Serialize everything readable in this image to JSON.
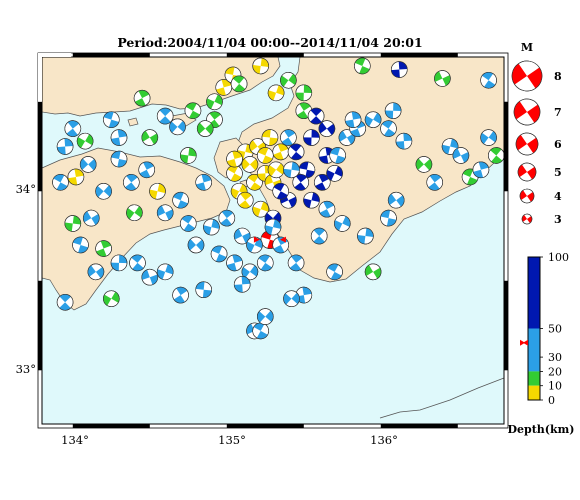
{
  "map": {
    "title": "Period:2004/11/04 00:00--2014/11/04 20:01",
    "lon_labels": [
      "134°",
      "135°",
      "136°"
    ],
    "lat_labels": [
      "34°",
      "33°"
    ],
    "lon_range": [
      133.8,
      136.8
    ],
    "lat_range": [
      32.7,
      34.75
    ],
    "colors": {
      "sea": "#dff9fb",
      "land": "#f8e6c8",
      "coast": "#555555",
      "yellow": "#f5d800",
      "green": "#33cc33",
      "cyan": "#2b9fe6",
      "blue": "#0018b0",
      "red": "#ff0000"
    }
  },
  "magnitude_legend": {
    "title": "M",
    "items": [
      "8",
      "7",
      "6",
      "5",
      "4",
      "3"
    ]
  },
  "depth_scale": {
    "title": "Depth(km)",
    "labels": [
      "100",
      "50",
      "30",
      "20",
      "10",
      "0"
    ],
    "colors": [
      "#0018b0",
      "#2b9fe6",
      "#33cc33",
      "#f5d800"
    ]
  },
  "events": [
    [
      135.28,
      33.73,
      "red",
      4,
      0.3
    ],
    [
      134.45,
      34.52,
      "green",
      3,
      1.1
    ],
    [
      134.78,
      34.45,
      "green",
      3,
      0.5
    ],
    [
      134.92,
      34.5,
      "green",
      3,
      2.0
    ],
    [
      134.92,
      34.4,
      "green",
      3,
      0.9
    ],
    [
      134.86,
      34.35,
      "green",
      3,
      2.4
    ],
    [
      134.98,
      34.58,
      "yellow",
      3,
      1.3
    ],
    [
      135.04,
      34.65,
      "yellow",
      3,
      0.2
    ],
    [
      135.22,
      34.7,
      "yellow",
      3,
      1.7
    ],
    [
      135.08,
      34.6,
      "green",
      3,
      0.7
    ],
    [
      135.4,
      34.62,
      "green",
      3,
      2.2
    ],
    [
      135.5,
      34.45,
      "green",
      3,
      1.0
    ],
    [
      135.32,
      34.55,
      "yellow",
      3,
      1.9
    ],
    [
      135.88,
      34.7,
      "green",
      3,
      0.4
    ],
    [
      136.12,
      34.68,
      "blue",
      3,
      1.5
    ],
    [
      136.4,
      34.63,
      "green",
      3,
      2.7
    ],
    [
      136.7,
      34.62,
      "cyan",
      3,
      0.6
    ],
    [
      135.5,
      34.55,
      "green",
      3,
      1.6
    ],
    [
      134.0,
      34.35,
      "cyan",
      3,
      0.9
    ],
    [
      134.08,
      34.28,
      "green",
      3,
      2.1
    ],
    [
      134.25,
      34.4,
      "cyan",
      3,
      0.3
    ],
    [
      134.3,
      34.3,
      "cyan",
      3,
      1.4
    ],
    [
      134.5,
      34.3,
      "green",
      3,
      2.6
    ],
    [
      134.6,
      34.42,
      "cyan",
      3,
      0.8
    ],
    [
      134.75,
      34.2,
      "green",
      3,
      1.7
    ],
    [
      134.68,
      34.36,
      "cyan",
      3,
      2.3
    ],
    [
      134.48,
      34.12,
      "cyan",
      3,
      1.1
    ],
    [
      135.05,
      34.1,
      "yellow",
      3,
      0.5
    ],
    [
      135.12,
      34.22,
      "yellow",
      3,
      1.8
    ],
    [
      135.2,
      34.25,
      "yellow",
      3,
      2.5
    ],
    [
      135.28,
      34.3,
      "yellow",
      3,
      0.1
    ],
    [
      135.35,
      34.22,
      "yellow",
      3,
      1.2
    ],
    [
      135.08,
      34.0,
      "yellow",
      3,
      2.0
    ],
    [
      135.18,
      34.05,
      "yellow",
      3,
      0.6
    ],
    [
      135.25,
      34.1,
      "yellow",
      3,
      1.5
    ],
    [
      135.3,
      34.05,
      "yellow",
      3,
      2.8
    ],
    [
      135.12,
      33.95,
      "yellow",
      3,
      0.9
    ],
    [
      135.22,
      33.9,
      "yellow",
      3,
      1.9
    ],
    [
      135.15,
      34.15,
      "yellow",
      3,
      2.4
    ],
    [
      135.25,
      34.2,
      "yellow",
      3,
      0.4
    ],
    [
      135.05,
      34.18,
      "yellow",
      3,
      1.3
    ],
    [
      135.32,
      34.12,
      "yellow",
      3,
      2.2
    ],
    [
      135.4,
      34.3,
      "cyan",
      3,
      1.0
    ],
    [
      135.45,
      34.22,
      "blue",
      3,
      0.7
    ],
    [
      135.55,
      34.3,
      "blue",
      3,
      1.6
    ],
    [
      135.65,
      34.35,
      "blue",
      3,
      2.5
    ],
    [
      135.52,
      34.12,
      "blue",
      3,
      0.2
    ],
    [
      135.62,
      34.05,
      "blue",
      3,
      1.1
    ],
    [
      135.7,
      34.1,
      "blue",
      3,
      2.0
    ],
    [
      135.48,
      34.05,
      "blue",
      3,
      0.9
    ],
    [
      135.55,
      33.95,
      "blue",
      3,
      1.8
    ],
    [
      135.4,
      33.95,
      "blue",
      3,
      2.7
    ],
    [
      135.35,
      34.0,
      "blue",
      3,
      0.5
    ],
    [
      135.65,
      34.2,
      "blue",
      3,
      1.4
    ],
    [
      135.3,
      33.85,
      "blue",
      3,
      2.3
    ],
    [
      135.58,
      34.42,
      "blue",
      3,
      0.8
    ],
    [
      135.42,
      34.12,
      "cyan",
      3,
      1.7
    ],
    [
      135.78,
      34.3,
      "cyan",
      3,
      2.6
    ],
    [
      135.72,
      34.2,
      "cyan",
      3,
      0.3
    ],
    [
      135.85,
      34.35,
      "cyan",
      3,
      1.2
    ],
    [
      135.95,
      34.4,
      "cyan",
      3,
      2.1
    ],
    [
      136.05,
      34.35,
      "cyan",
      3,
      0.6
    ],
    [
      136.15,
      34.28,
      "cyan",
      3,
      1.5
    ],
    [
      136.28,
      34.15,
      "green",
      3,
      2.4
    ],
    [
      136.35,
      34.05,
      "cyan",
      3,
      0.9
    ],
    [
      136.45,
      34.25,
      "cyan",
      3,
      1.8
    ],
    [
      136.52,
      34.2,
      "cyan",
      3,
      2.7
    ],
    [
      136.58,
      34.08,
      "green",
      3,
      0.4
    ],
    [
      136.65,
      34.12,
      "cyan",
      3,
      1.3
    ],
    [
      136.7,
      34.3,
      "cyan",
      3,
      2.2
    ],
    [
      136.75,
      34.2,
      "green",
      3,
      0.7
    ],
    [
      136.08,
      34.45,
      "cyan",
      3,
      1.6
    ],
    [
      136.1,
      33.95,
      "cyan",
      3,
      2.5
    ],
    [
      136.05,
      33.85,
      "cyan",
      3,
      0.2
    ],
    [
      135.65,
      33.9,
      "cyan",
      3,
      1.1
    ],
    [
      135.75,
      33.82,
      "cyan",
      3,
      2.0
    ],
    [
      135.6,
      33.75,
      "cyan",
      3,
      0.8
    ],
    [
      135.9,
      33.75,
      "cyan",
      3,
      1.7
    ],
    [
      135.95,
      33.55,
      "green",
      3,
      2.6
    ],
    [
      135.7,
      33.55,
      "cyan",
      3,
      0.5
    ],
    [
      135.5,
      33.42,
      "cyan",
      3,
      1.4
    ],
    [
      135.42,
      33.4,
      "cyan",
      3,
      2.3
    ],
    [
      135.0,
      33.85,
      "cyan",
      3,
      0.9
    ],
    [
      134.9,
      33.8,
      "cyan",
      3,
      1.8
    ],
    [
      135.1,
      33.75,
      "cyan",
      3,
      2.7
    ],
    [
      134.95,
      33.65,
      "cyan",
      3,
      0.4
    ],
    [
      135.05,
      33.6,
      "cyan",
      3,
      1.3
    ],
    [
      135.15,
      33.55,
      "cyan",
      3,
      2.2
    ],
    [
      135.25,
      33.6,
      "cyan",
      3,
      0.6
    ],
    [
      135.1,
      33.48,
      "cyan",
      3,
      1.5
    ],
    [
      134.8,
      33.7,
      "cyan",
      3,
      2.4
    ],
    [
      134.85,
      33.45,
      "cyan",
      3,
      0.1
    ],
    [
      134.7,
      33.42,
      "cyan",
      3,
      1.0
    ],
    [
      134.6,
      33.55,
      "cyan",
      3,
      1.9
    ],
    [
      134.5,
      33.52,
      "cyan",
      3,
      2.8
    ],
    [
      134.42,
      33.6,
      "cyan",
      3,
      0.7
    ],
    [
      134.3,
      33.6,
      "cyan",
      3,
      1.6
    ],
    [
      134.15,
      33.55,
      "cyan",
      3,
      2.5
    ],
    [
      134.05,
      33.7,
      "cyan",
      3,
      0.3
    ],
    [
      134.2,
      33.68,
      "green",
      3,
      1.2
    ],
    [
      134.25,
      33.4,
      "green",
      3,
      2.1
    ],
    [
      133.95,
      33.38,
      "cyan",
      3,
      0.8
    ],
    [
      134.0,
      33.82,
      "green",
      3,
      1.7
    ],
    [
      134.12,
      33.85,
      "cyan",
      3,
      2.6
    ],
    [
      133.92,
      34.05,
      "cyan",
      3,
      0.5
    ],
    [
      134.02,
      34.08,
      "yellow",
      3,
      1.4
    ],
    [
      134.2,
      34.0,
      "cyan",
      3,
      2.3
    ],
    [
      134.38,
      34.05,
      "cyan",
      3,
      0.9
    ],
    [
      134.55,
      34.0,
      "yellow",
      3,
      1.8
    ],
    [
      134.6,
      33.88,
      "cyan",
      3,
      2.7
    ],
    [
      134.7,
      33.95,
      "cyan",
      3,
      0.4
    ],
    [
      134.85,
      34.05,
      "cyan",
      3,
      1.3
    ],
    [
      134.4,
      33.88,
      "green",
      3,
      2.2
    ],
    [
      134.75,
      33.82,
      "cyan",
      3,
      0.6
    ],
    [
      133.95,
      34.25,
      "cyan",
      3,
      1.5
    ],
    [
      134.1,
      34.15,
      "cyan",
      3,
      2.4
    ],
    [
      134.3,
      34.18,
      "cyan",
      3,
      0.2
    ],
    [
      135.35,
      33.7,
      "cyan",
      3,
      1.1
    ],
    [
      135.18,
      33.7,
      "cyan",
      3,
      2.0
    ],
    [
      135.45,
      33.6,
      "cyan",
      3,
      0.9
    ],
    [
      135.3,
      33.8,
      "cyan",
      3,
      1.8
    ],
    [
      135.18,
      33.22,
      "cyan",
      3,
      2.7
    ],
    [
      135.22,
      33.22,
      "cyan",
      3,
      0.5
    ],
    [
      135.82,
      34.4,
      "cyan",
      3,
      1.4
    ],
    [
      135.25,
      33.3,
      "cyan",
      3,
      2.3
    ]
  ]
}
